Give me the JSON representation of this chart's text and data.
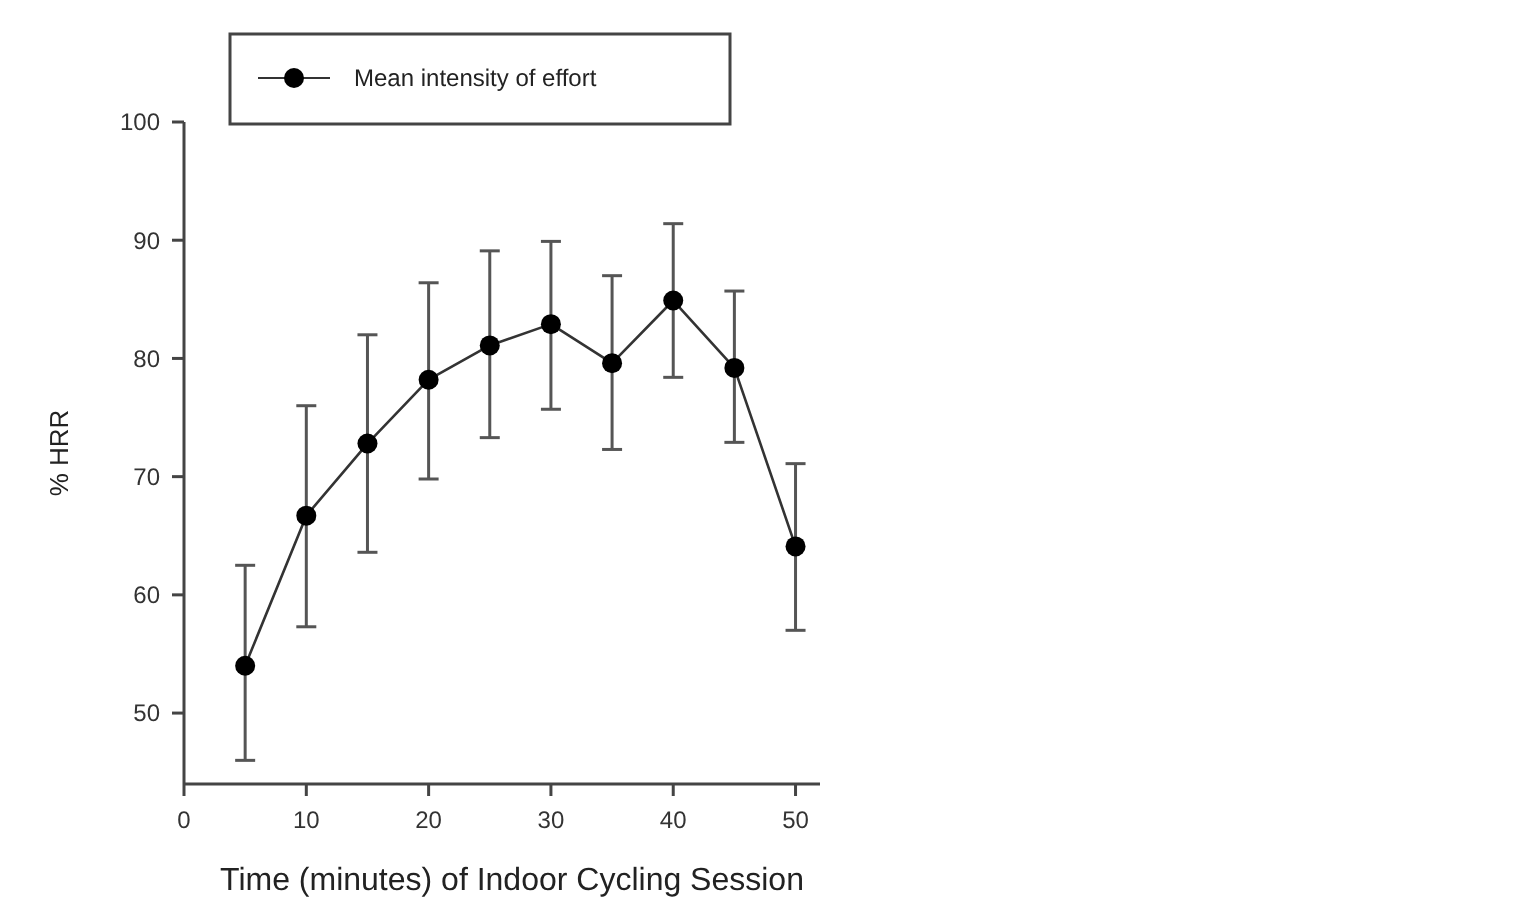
{
  "chart_data": {
    "type": "line",
    "xlabel": "Time (minutes) of Indoor Cycling Session",
    "ylabel": "% HRR",
    "x": [
      5,
      10,
      15,
      20,
      25,
      30,
      35,
      40,
      45,
      50
    ],
    "series": [
      {
        "name": "Mean intensity of effort",
        "color": "#000000",
        "values": [
          54,
          66.7,
          72.8,
          78.2,
          81.1,
          82.9,
          79.6,
          84.9,
          79.2,
          64.1
        ],
        "errors": [
          [
            46,
            62.5
          ],
          [
            57.3,
            76
          ],
          [
            63.6,
            82
          ],
          [
            69.8,
            86.4
          ],
          [
            73.3,
            89.1
          ],
          [
            75.7,
            89.9
          ],
          [
            72.3,
            87
          ],
          [
            78.4,
            91.4
          ],
          [
            72.9,
            85.7
          ],
          [
            57,
            71.1
          ]
        ]
      }
    ],
    "xlim": [
      0,
      52
    ],
    "xticks": [
      0,
      10,
      20,
      30,
      40,
      50
    ],
    "ylim": [
      44,
      100
    ],
    "yticks": [
      50,
      60,
      70,
      80,
      90,
      100
    ],
    "marker": "circle",
    "line_style": "solid",
    "legend": "top",
    "grid": false
  }
}
